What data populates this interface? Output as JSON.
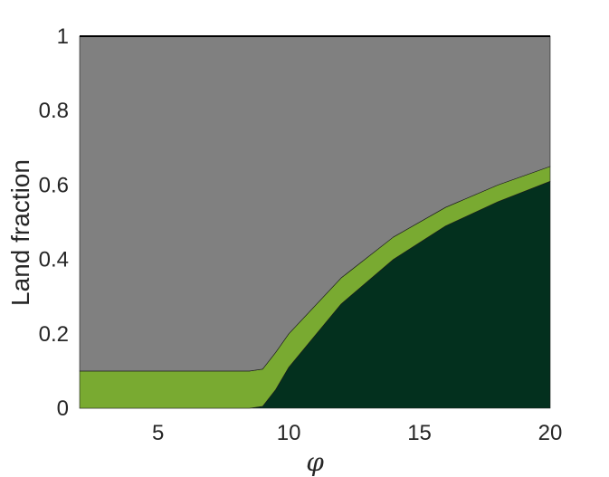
{
  "chart_data": {
    "type": "area",
    "stacked": true,
    "xlabel": "φ",
    "ylabel": "Land fraction",
    "xlim": [
      2,
      20
    ],
    "ylim": [
      0,
      1
    ],
    "xticks": [
      5,
      10,
      15,
      20
    ],
    "yticks": [
      0,
      0.2,
      0.4,
      0.6,
      0.8,
      1
    ],
    "grid": false,
    "x": [
      2,
      4,
      6,
      8,
      8.5,
      9,
      9.5,
      10,
      12,
      14,
      16,
      18,
      20
    ],
    "series": [
      {
        "color": "#03301e",
        "values": [
          0,
          0,
          0,
          0,
          0,
          0.005,
          0.05,
          0.11,
          0.28,
          0.4,
          0.49,
          0.555,
          0.61
        ]
      },
      {
        "color": "#79aa31",
        "values": [
          0.1,
          0.1,
          0.1,
          0.1,
          0.1,
          0.1,
          0.1,
          0.09,
          0.07,
          0.06,
          0.05,
          0.045,
          0.04
        ]
      },
      {
        "color": "#808080",
        "values": [
          0.9,
          0.9,
          0.9,
          0.9,
          0.9,
          0.895,
          0.85,
          0.8,
          0.65,
          0.54,
          0.46,
          0.4,
          0.35
        ]
      }
    ]
  }
}
